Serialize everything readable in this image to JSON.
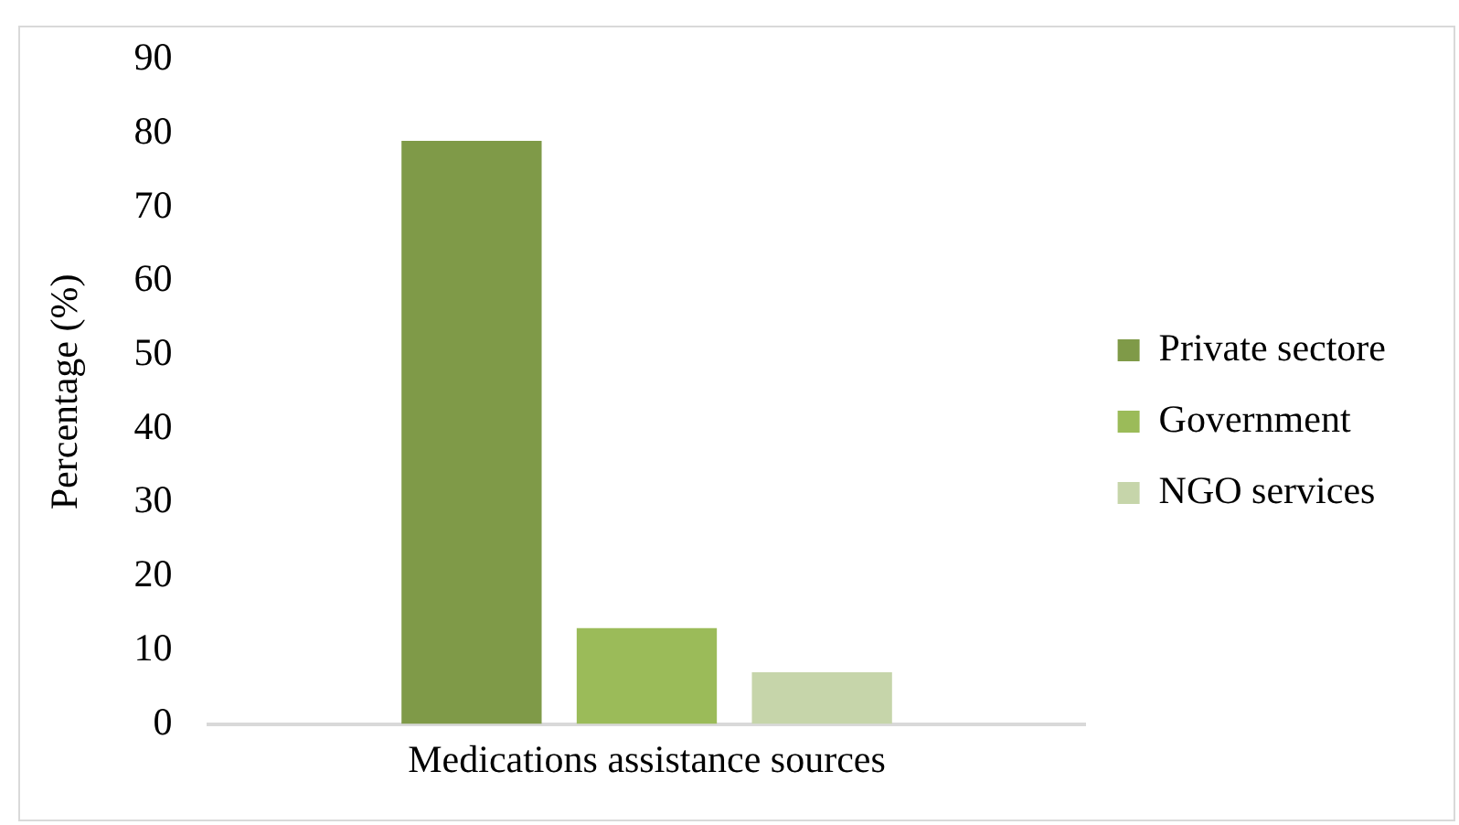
{
  "chart_data": {
    "type": "bar",
    "xlabel": "Medications assistance sources",
    "ylabel": "Percentage (%)",
    "categories": [
      null
    ],
    "series": [
      {
        "name": "Private sectore",
        "color": "#7f9a48",
        "values": [
          79
        ]
      },
      {
        "name": "Government",
        "color": "#9bbb59",
        "values": [
          13
        ]
      },
      {
        "name": "NGO services",
        "color": "#c6d5aa",
        "values": [
          7
        ]
      }
    ],
    "ylim": [
      0,
      90
    ],
    "yticks": [
      0,
      10,
      20,
      30,
      40,
      50,
      60,
      70,
      80,
      90
    ],
    "grid": false,
    "legend": "right"
  }
}
